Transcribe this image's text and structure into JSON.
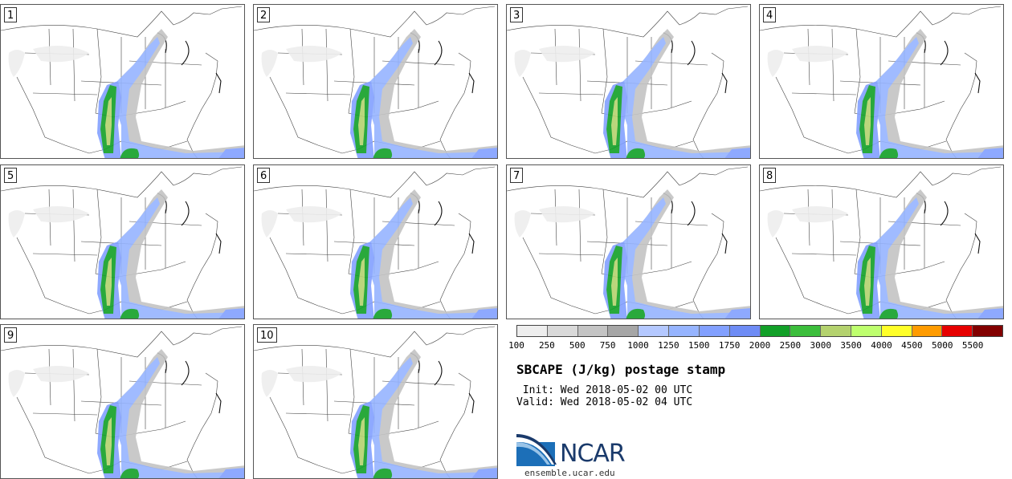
{
  "product": {
    "title": "SBCAPE (J/kg) postage stamp",
    "init": " Init: Wed 2018-05-02 00 UTC",
    "valid": "Valid: Wed 2018-05-02 04 UTC"
  },
  "members": [
    "1",
    "2",
    "3",
    "4",
    "5",
    "6",
    "7",
    "8",
    "9",
    "10"
  ],
  "colorbar": {
    "colors": [
      "#eeeeee",
      "#d9d9d9",
      "#c4c4c4",
      "#a6a6a6",
      "#b4c8ff",
      "#96b4ff",
      "#82a0ff",
      "#6e8cf5",
      "#12a028",
      "#3cbe3c",
      "#b4d26e",
      "#beff6e",
      "#ffff28",
      "#ff9b00",
      "#e60000",
      "#820000"
    ],
    "ticks": [
      "100",
      "250",
      "500",
      "750",
      "1000",
      "1250",
      "1500",
      "1750",
      "2000",
      "2500",
      "3000",
      "3500",
      "4000",
      "4500",
      "5000",
      "5500"
    ]
  },
  "logo": {
    "name": "NCAR",
    "url": "ensemble.ucar.edu"
  }
}
